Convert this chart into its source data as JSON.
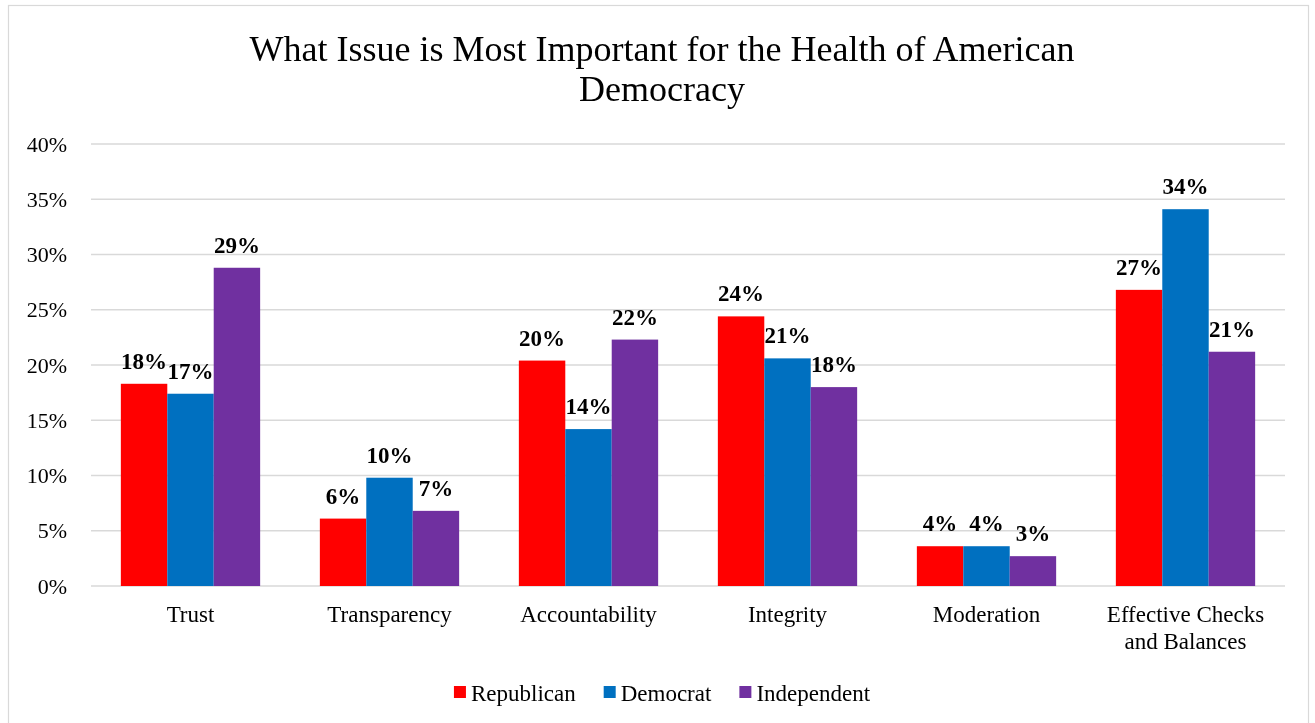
{
  "chart_data": {
    "type": "bar",
    "title": "What Issue is Most Important for the Health of American Democracy",
    "categories": [
      "Trust",
      "Transparency",
      "Accountability",
      "Integrity",
      "Moderation",
      "Effective Checks and Balances"
    ],
    "series": [
      {
        "name": "Republican",
        "color": "#ff0000",
        "values": [
          18.3,
          6.1,
          20.4,
          24.4,
          3.6,
          26.8
        ],
        "value_labels": [
          "18%",
          "6%",
          "20%",
          "24%",
          "4%",
          "27%"
        ]
      },
      {
        "name": "Democrat",
        "color": "#0070c0",
        "values": [
          17.4,
          9.8,
          14.2,
          20.6,
          3.6,
          34.1
        ],
        "value_labels": [
          "17%",
          "10%",
          "14%",
          "21%",
          "4%",
          "34%"
        ]
      },
      {
        "name": "Independent",
        "color": "#7030a0",
        "values": [
          28.8,
          6.8,
          22.3,
          18.0,
          2.7,
          21.2
        ],
        "value_labels": [
          "29%",
          "7%",
          "22%",
          "18%",
          "3%",
          "21%"
        ]
      }
    ],
    "ylim": [
      0,
      40
    ],
    "yticks": [
      {
        "value": 0,
        "label": "0%"
      },
      {
        "value": 5,
        "label": "5%"
      },
      {
        "value": 10,
        "label": "10%"
      },
      {
        "value": 15,
        "label": "15%"
      },
      {
        "value": 20,
        "label": "20%"
      },
      {
        "value": 25,
        "label": "25%"
      },
      {
        "value": 30,
        "label": "30%"
      },
      {
        "value": 35,
        "label": "35%"
      },
      {
        "value": 40,
        "label": "40%"
      }
    ],
    "grid": "y",
    "legend": "bottom"
  }
}
